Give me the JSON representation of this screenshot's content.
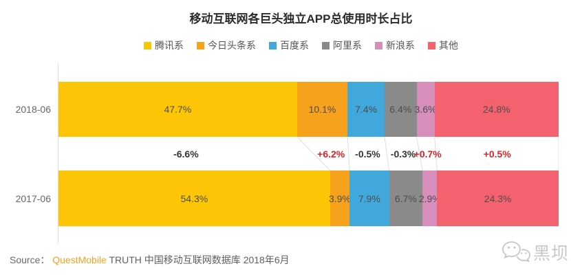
{
  "chart_data": {
    "type": "bar",
    "orientation": "horizontal",
    "stacked": true,
    "title": "移动互联网各巨头独立APP总使用时长占比",
    "value_suffix": "%",
    "legend_position": "top",
    "legend": [
      {
        "label": "腾讯系",
        "color": "#fcc607"
      },
      {
        "label": "今日头条系",
        "color": "#f6a21d"
      },
      {
        "label": "百度系",
        "color": "#41a8dc"
      },
      {
        "label": "阿里系",
        "color": "#8a8a8a"
      },
      {
        "label": "新浪系",
        "color": "#d78ebb"
      },
      {
        "label": "其他",
        "color": "#f5626f"
      }
    ],
    "categories": [
      "2018-06",
      "2017-06"
    ],
    "rows": [
      {
        "label": "2018-06",
        "values": [
          47.7,
          10.1,
          7.4,
          6.4,
          3.6,
          24.8
        ]
      },
      {
        "label": "2017-06",
        "values": [
          54.3,
          3.9,
          7.9,
          6.7,
          2.9,
          24.3
        ]
      }
    ],
    "changes": [
      {
        "text": "-6.6%",
        "direction": "down"
      },
      {
        "text": "+6.2%",
        "direction": "up"
      },
      {
        "text": "-0.5%",
        "direction": "down"
      },
      {
        "text": "-0.3%",
        "direction": "down"
      },
      {
        "text": "+0.7%",
        "direction": "up"
      },
      {
        "text": "+0.5%",
        "direction": "up"
      }
    ],
    "colors": {
      "positive_change": "#d9232b",
      "negative_change": "#333333",
      "connector_line": "#dddddd",
      "axis_line": "#dddddd",
      "bar_value_label": "#4d4d4d"
    },
    "xlim": [
      0,
      100
    ],
    "grid": false
  },
  "source": {
    "prefix": "Source：",
    "brand": "QuestMobile",
    "rest": " TRUTH 中国移动互联网数据库 2018年6月"
  },
  "watermark": {
    "icon": "wechat-icon",
    "text": "黑坝",
    "color": "#c7c7c7"
  }
}
